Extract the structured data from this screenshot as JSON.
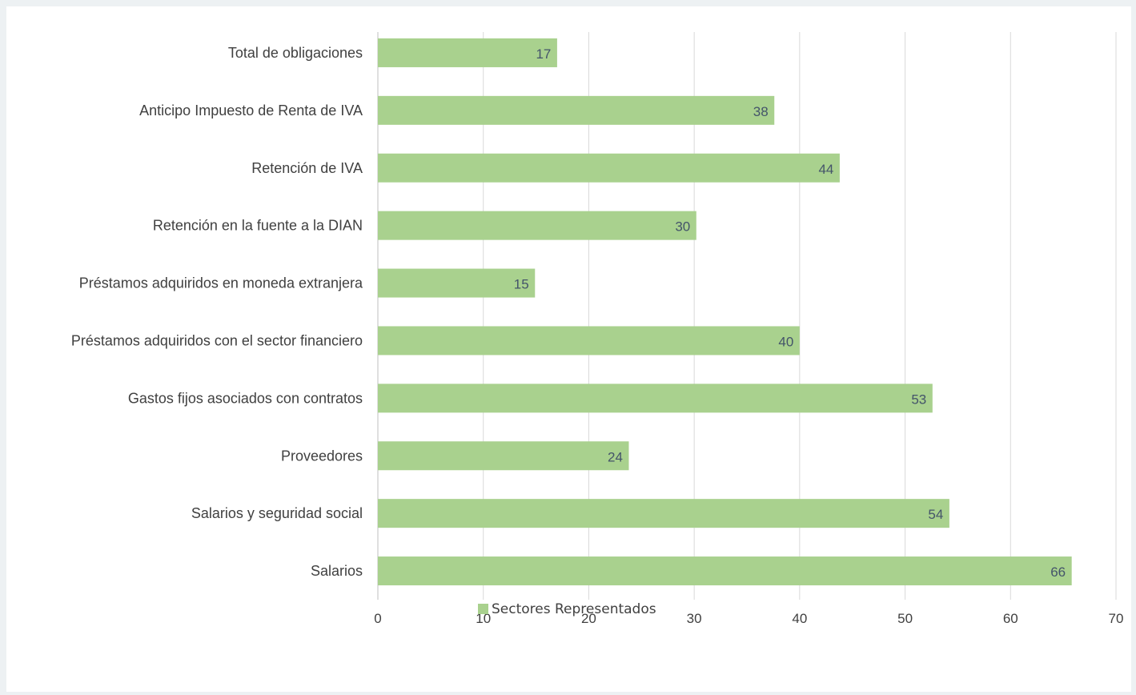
{
  "chart_data": {
    "type": "bar",
    "orientation": "horizontal",
    "categories": [
      "Total de obligaciones",
      "Anticipo Impuesto de Renta de IVA",
      "Retención de IVA",
      "Retención en la fuente a la DIAN",
      "Préstamos adquiridos en moneda extranjera",
      "Préstamos adquiridos con el sector financiero",
      "Gastos fijos asociados con contratos",
      "Proveedores",
      "Salarios y seguridad social",
      "Salarios"
    ],
    "series": [
      {
        "name": "Sectores Representados",
        "values": [
          17,
          37.6,
          43.8,
          30.2,
          14.9,
          40,
          52.6,
          23.8,
          54.2,
          65.8
        ],
        "labels": [
          "17",
          "38",
          "44",
          "30",
          "15",
          "40",
          "53",
          "24",
          "54",
          "66"
        ],
        "color": "#a9d18e"
      }
    ],
    "title": "",
    "xlabel": "",
    "ylabel": "",
    "xlim": [
      0,
      70
    ],
    "xticks": [
      "0",
      "10",
      "20",
      "30",
      "40",
      "50",
      "60",
      "70"
    ],
    "grid": "vertical",
    "legend": "bottom"
  },
  "colors": {
    "background": "#edf1f3",
    "card": "#ffffff",
    "gridline": "#d9d9d9",
    "axis": "#bfbfbf"
  }
}
